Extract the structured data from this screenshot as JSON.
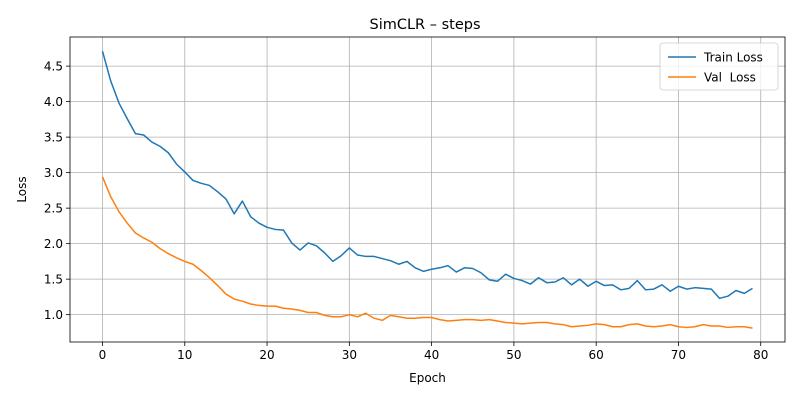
{
  "chart_data": {
    "type": "line",
    "title": "SimCLR – steps",
    "xlabel": "Epoch",
    "ylabel": "Loss",
    "xlim": [
      -3.95,
      82.95
    ],
    "ylim": [
      0.615,
      4.91
    ],
    "xticks": [
      0,
      10,
      20,
      30,
      40,
      50,
      60,
      70,
      80
    ],
    "yticks": [
      1.0,
      1.5,
      2.0,
      2.5,
      3.0,
      3.5,
      4.0,
      4.5
    ],
    "ytick_labels": [
      "1.0",
      "1.5",
      "2.0",
      "2.5",
      "3.0",
      "3.5",
      "4.0",
      "4.5"
    ],
    "grid": true,
    "legend_position": "top-right",
    "series": [
      {
        "name": "Train Loss",
        "color": "#1f77b4",
        "values": [
          4.71,
          4.29,
          3.98,
          3.76,
          3.55,
          3.53,
          3.43,
          3.37,
          3.28,
          3.12,
          3.01,
          2.89,
          2.85,
          2.82,
          2.73,
          2.63,
          2.42,
          2.6,
          2.38,
          2.29,
          2.23,
          2.2,
          2.19,
          2.01,
          1.91,
          2.01,
          1.97,
          1.87,
          1.75,
          1.83,
          1.94,
          1.84,
          1.82,
          1.82,
          1.79,
          1.76,
          1.71,
          1.75,
          1.66,
          1.61,
          1.64,
          1.66,
          1.69,
          1.6,
          1.66,
          1.65,
          1.59,
          1.49,
          1.47,
          1.57,
          1.51,
          1.48,
          1.43,
          1.52,
          1.45,
          1.46,
          1.52,
          1.42,
          1.5,
          1.4,
          1.47,
          1.41,
          1.42,
          1.35,
          1.37,
          1.48,
          1.35,
          1.36,
          1.42,
          1.33,
          1.4,
          1.36,
          1.38,
          1.37,
          1.36,
          1.23,
          1.26,
          1.34,
          1.3,
          1.37
        ]
      },
      {
        "name": "Val  Loss",
        "color": "#ff7f0e",
        "values": [
          2.94,
          2.66,
          2.45,
          2.29,
          2.15,
          2.08,
          2.02,
          1.93,
          1.86,
          1.8,
          1.75,
          1.71,
          1.62,
          1.52,
          1.41,
          1.29,
          1.22,
          1.19,
          1.15,
          1.13,
          1.12,
          1.12,
          1.09,
          1.08,
          1.06,
          1.03,
          1.03,
          0.99,
          0.97,
          0.97,
          1.0,
          0.97,
          1.02,
          0.95,
          0.92,
          0.99,
          0.97,
          0.95,
          0.95,
          0.96,
          0.96,
          0.93,
          0.91,
          0.92,
          0.93,
          0.93,
          0.92,
          0.93,
          0.91,
          0.89,
          0.88,
          0.87,
          0.88,
          0.89,
          0.89,
          0.87,
          0.86,
          0.83,
          0.84,
          0.85,
          0.87,
          0.86,
          0.83,
          0.83,
          0.86,
          0.87,
          0.84,
          0.83,
          0.84,
          0.86,
          0.83,
          0.82,
          0.83,
          0.86,
          0.84,
          0.84,
          0.82,
          0.83,
          0.83,
          0.81
        ]
      }
    ]
  }
}
